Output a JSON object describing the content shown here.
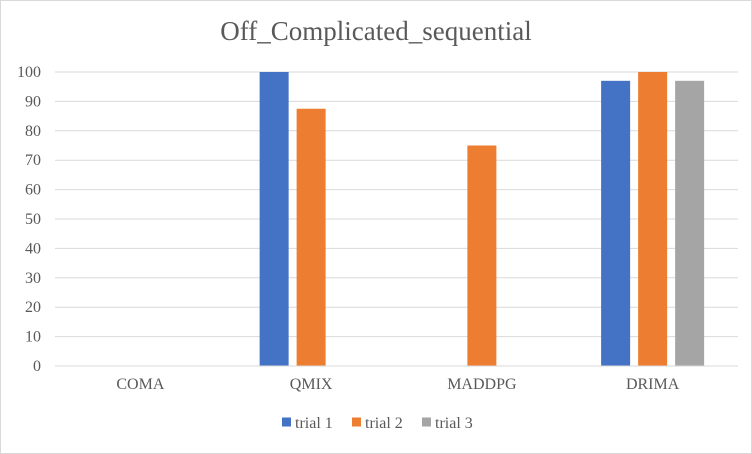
{
  "chart_data": {
    "type": "bar",
    "title": "Off_Complicated_sequential",
    "categories": [
      "COMA",
      "QMIX",
      "MADDPG",
      "DRIMA"
    ],
    "series": [
      {
        "name": "trial 1",
        "color": "#4472c4",
        "values": [
          0,
          100,
          0,
          97
        ]
      },
      {
        "name": "trial 2",
        "color": "#ed7d31",
        "values": [
          0,
          87.5,
          75,
          100
        ]
      },
      {
        "name": "trial 3",
        "color": "#a5a5a5",
        "values": [
          0,
          0,
          0,
          97
        ]
      }
    ],
    "ylim": [
      0,
      100
    ],
    "yticks": [
      0,
      10,
      20,
      30,
      40,
      50,
      60,
      70,
      80,
      90,
      100
    ],
    "grid": true,
    "legend": "bottom"
  }
}
